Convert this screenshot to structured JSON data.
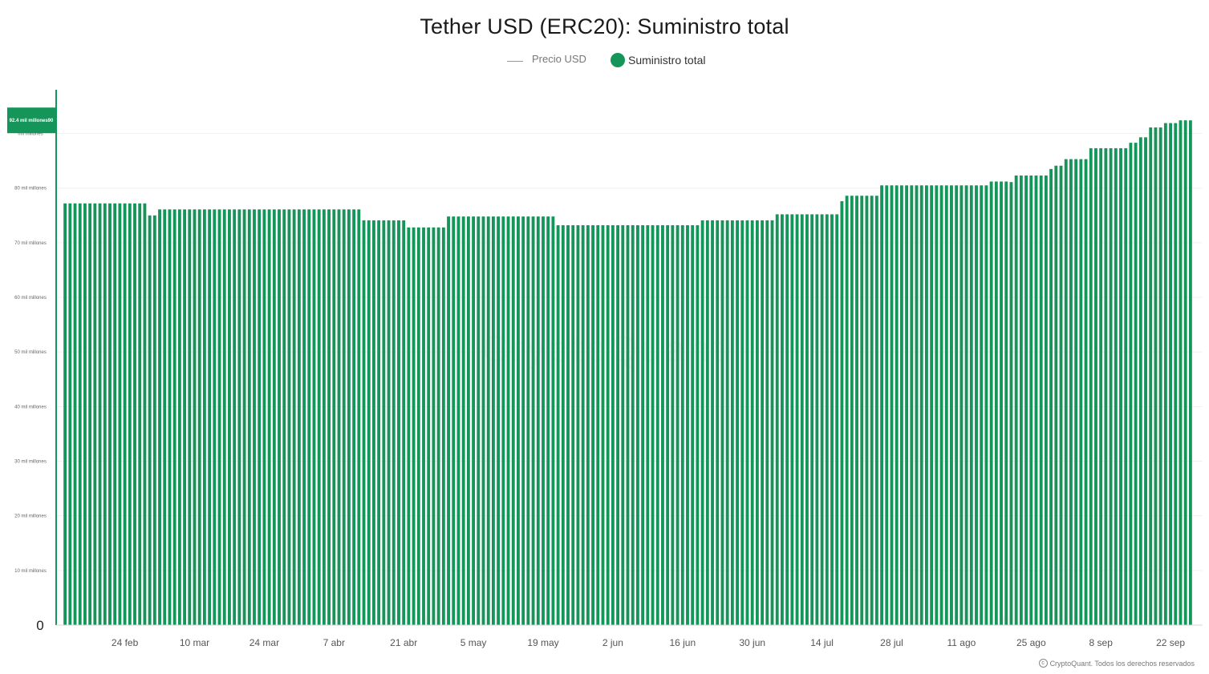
{
  "chart_data": {
    "type": "bar",
    "title": "Tether USD (ERC20): Suministro total",
    "legend": [
      {
        "name": "Precio USD",
        "marker": "line",
        "color": "#999999"
      },
      {
        "name": "Suministro total",
        "marker": "dot",
        "color": "#15955a"
      }
    ],
    "legend_position": "top-center",
    "ylim": [
      0,
      98
    ],
    "y_ticks": [
      {
        "value": 10,
        "label": "10 mil millones"
      },
      {
        "value": 20,
        "label": "20 mil millones"
      },
      {
        "value": 30,
        "label": "30 mil millones"
      },
      {
        "value": 40,
        "label": "40 mil millones"
      },
      {
        "value": 50,
        "label": "50 mil millones"
      },
      {
        "value": 60,
        "label": "60 mil millones"
      },
      {
        "value": 70,
        "label": "70 mil millones"
      },
      {
        "value": 80,
        "label": "80 mil millones"
      },
      {
        "value": 90,
        "label": "mil millones"
      }
    ],
    "zero_label": "0",
    "current_value_label": "92.4 mil millones90",
    "x_ticks": [
      "24 feb",
      "10 mar",
      "24 mar",
      "7 abr",
      "21 abr",
      "5 may",
      "19 may",
      "2 jun",
      "16 jun",
      "30 jun",
      "14 jul",
      "28 jul",
      "11 ago",
      "25 ago",
      "8 sep",
      "22 sep"
    ],
    "x_tick_index": [
      12,
      26,
      40,
      54,
      68,
      82,
      96,
      110,
      124,
      138,
      152,
      166,
      180,
      194,
      208,
      222
    ],
    "grid": true,
    "series": [
      {
        "name": "Suministro total",
        "color": "#15955a",
        "segments": [
          {
            "days": 17,
            "value": 77.2
          },
          {
            "days": 2,
            "value": 75.0
          },
          {
            "days": 41,
            "value": 76.1
          },
          {
            "days": 9,
            "value": 74.1
          },
          {
            "days": 8,
            "value": 72.8
          },
          {
            "days": 22,
            "value": 74.8
          },
          {
            "days": 29,
            "value": 73.2
          },
          {
            "days": 15,
            "value": 74.1
          },
          {
            "days": 13,
            "value": 75.2
          },
          {
            "days": 1,
            "value": 77.6
          },
          {
            "days": 7,
            "value": 78.6
          },
          {
            "days": 22,
            "value": 80.5
          },
          {
            "days": 4,
            "value": 81.2
          },
          {
            "days": 1,
            "value": 81.1
          },
          {
            "days": 7,
            "value": 82.3
          },
          {
            "days": 1,
            "value": 83.5
          },
          {
            "days": 2,
            "value": 84.1
          },
          {
            "days": 5,
            "value": 85.3
          },
          {
            "days": 8,
            "value": 87.3
          },
          {
            "days": 2,
            "value": 88.3
          },
          {
            "days": 2,
            "value": 89.3
          },
          {
            "days": 3,
            "value": 91.1
          },
          {
            "days": 3,
            "value": 91.9
          },
          {
            "days": 3,
            "value": 92.4
          }
        ]
      }
    ]
  },
  "footer": {
    "copyright": "CryptoQuant. Todos los derechos reservados",
    "icon": "copyright-icon"
  }
}
